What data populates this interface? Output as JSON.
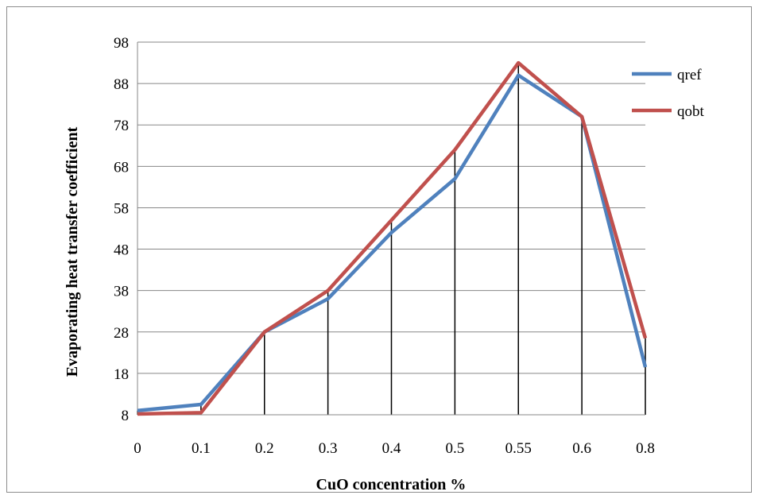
{
  "chart_data": {
    "type": "line",
    "categories": [
      "0",
      "0.1",
      "0.2",
      "0.3",
      "0.4",
      "0.5",
      "0.55",
      "0.6",
      "0.8"
    ],
    "series": [
      {
        "name": "qref",
        "color": "#4f81bd",
        "values": [
          9,
          10.5,
          28,
          36,
          52,
          65,
          90,
          80,
          19.5
        ]
      },
      {
        "name": "qobt",
        "color": "#c0504d",
        "values": [
          8.2,
          8.5,
          28,
          38,
          55,
          72,
          93,
          80,
          26.5
        ]
      }
    ],
    "title": "",
    "xlabel": "CuO concentration %",
    "ylabel": "Evaporating heat transfer coefficient",
    "ylim": [
      8,
      98
    ],
    "yticks": [
      "98",
      "88",
      "78",
      "68",
      "58",
      "48",
      "38",
      "28",
      "18",
      "8"
    ],
    "grid": "horizontal",
    "drop_lines": true,
    "legend": "right"
  }
}
